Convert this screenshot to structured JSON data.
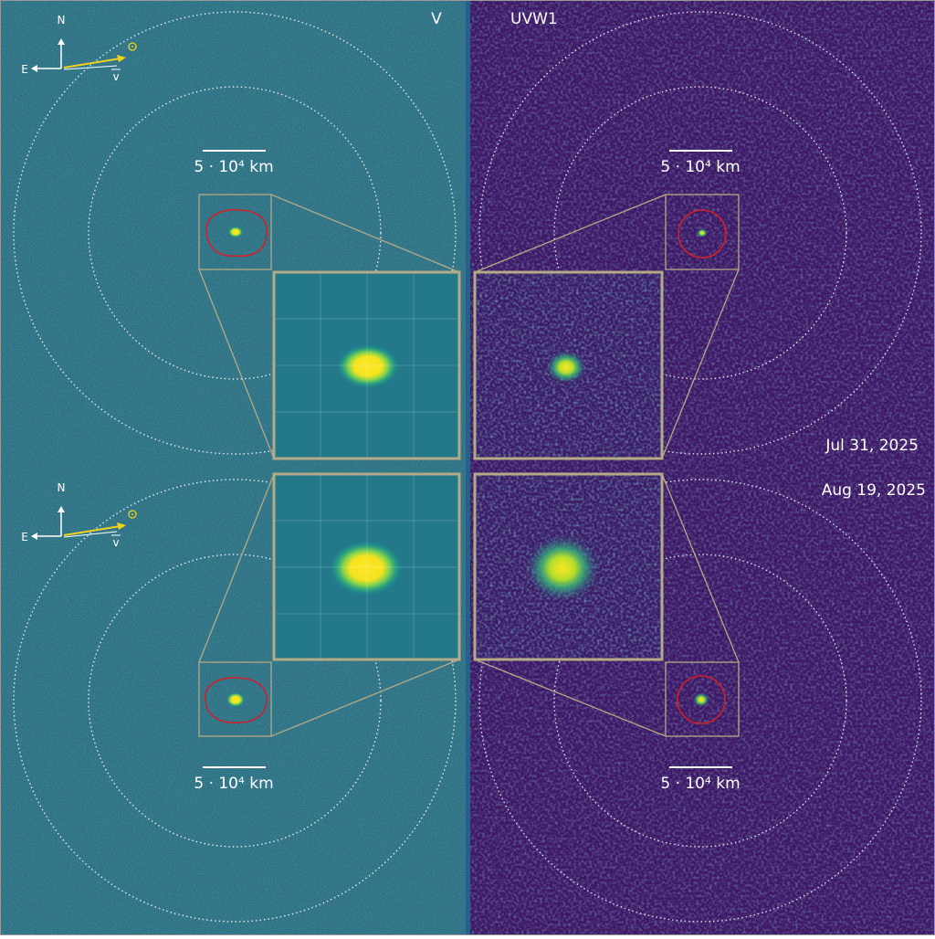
{
  "panels": {
    "top_left": {
      "filter": "V",
      "scale_bar": "5 · 10⁴ km",
      "compass": {
        "north": "N",
        "east": "E",
        "velocity": "v"
      }
    },
    "top_right": {
      "filter": "UVW1",
      "scale_bar": "5 · 10⁴ km"
    },
    "bottom_left": {
      "scale_bar": "5 · 10⁴ km",
      "compass": {
        "north": "N",
        "east": "E",
        "velocity": "v"
      }
    },
    "bottom_right": {
      "scale_bar": "5 · 10⁴ km"
    }
  },
  "dates": {
    "first": "Jul 31, 2025",
    "second": "Aug 19, 2025"
  }
}
